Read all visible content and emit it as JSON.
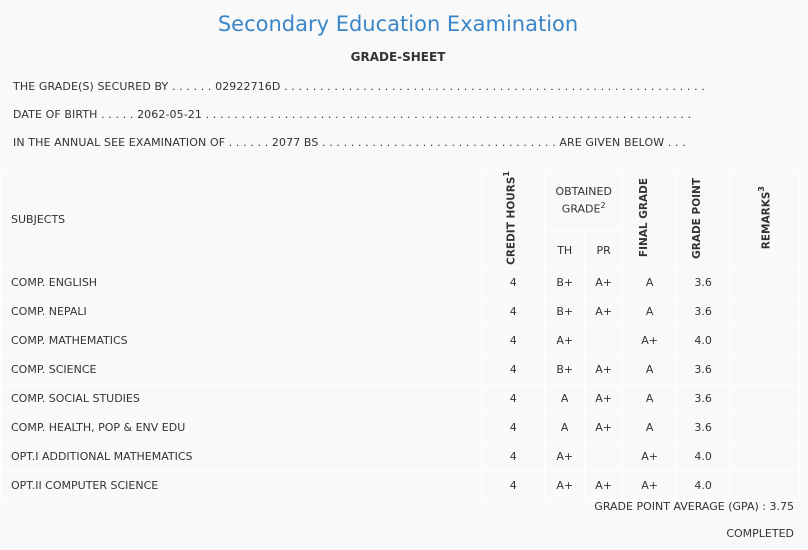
{
  "title": "Secondary Education Examination",
  "subtitle": "GRADE-SHEET",
  "info": {
    "secured_by": "THE GRADE(S) SECURED BY . . . . . . 02922716D . . . . . . . . . . . . . . . . . . . . . . . . . . . . . . . . . . . . . . . . . . . . . . . . . . . . . . . . . . .",
    "dob": "DATE OF BIRTH . . . . . 2062-05-21 . . . . . . . . . . . . . . . . . . . . . . . . . . . . . . . . . . . . . . . . . . . . . . . . . . . . . . . . . . . . . . . . . . . .",
    "exam": "IN THE ANNUAL SEE EXAMINATION OF . . . . . . 2077 BS . . . . . . . . . . . . . . . . . . . . . . . . . . . . . . . . . ARE GIVEN BELOW . . ."
  },
  "headers": {
    "subjects": "SUBJECTS",
    "credit": "CREDIT HOURS",
    "credit_sup": "1",
    "obtained": "OBTAINED GRADE",
    "obtained_sup": "2",
    "th": "TH",
    "pr": "PR",
    "final": "FINAL GRADE",
    "point": "GRADE POINT",
    "remarks": "REMARKS",
    "remarks_sup": "3"
  },
  "rows": [
    {
      "subject": "COMP. ENGLISH",
      "credit": "4",
      "th": "B+",
      "pr": "A+",
      "final": "A",
      "point": "3.6",
      "remarks": ""
    },
    {
      "subject": "COMP. NEPALI",
      "credit": "4",
      "th": "B+",
      "pr": "A+",
      "final": "A",
      "point": "3.6",
      "remarks": ""
    },
    {
      "subject": "COMP. MATHEMATICS",
      "credit": "4",
      "th": "A+",
      "pr": "",
      "final": "A+",
      "point": "4.0",
      "remarks": ""
    },
    {
      "subject": "COMP. SCIENCE",
      "credit": "4",
      "th": "B+",
      "pr": "A+",
      "final": "A",
      "point": "3.6",
      "remarks": ""
    },
    {
      "subject": "COMP. SOCIAL STUDIES",
      "credit": "4",
      "th": "A",
      "pr": "A+",
      "final": "A",
      "point": "3.6",
      "remarks": ""
    },
    {
      "subject": "COMP. HEALTH, POP & ENV EDU",
      "credit": "4",
      "th": "A",
      "pr": "A+",
      "final": "A",
      "point": "3.6",
      "remarks": ""
    },
    {
      "subject": "OPT.I ADDITIONAL MATHEMATICS",
      "credit": "4",
      "th": "A+",
      "pr": "",
      "final": "A+",
      "point": "4.0",
      "remarks": ""
    },
    {
      "subject": "OPT.II COMPUTER SCIENCE",
      "credit": "4",
      "th": "A+",
      "pr": "A+",
      "final": "A+",
      "point": "4.0",
      "remarks": ""
    }
  ],
  "gpa": "GRADE POINT AVERAGE (GPA) : 3.75",
  "status": "COMPLETED"
}
